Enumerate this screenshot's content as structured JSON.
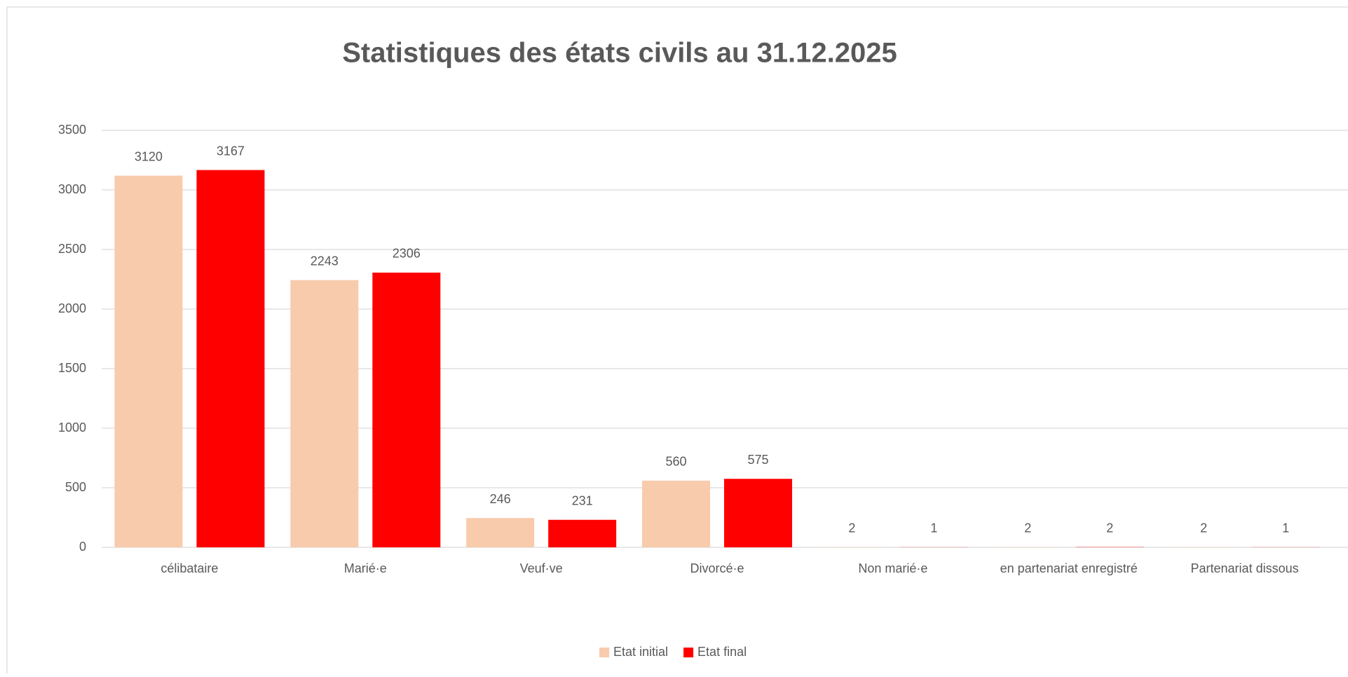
{
  "chart_data": {
    "type": "bar",
    "title": "Statistiques des états civils au 31.12.2025",
    "categories": [
      "célibataire",
      "Marié·e",
      "Veuf·ve",
      "Divorcé·e",
      "Non marié·e",
      "en partenariat enregistré",
      "Partenariat dissous"
    ],
    "series": [
      {
        "name": "Etat initial",
        "color": "#f8cbad",
        "values": [
          3120,
          2243,
          246,
          560,
          2,
          2,
          2
        ]
      },
      {
        "name": "Etat final",
        "color": "#ff0000",
        "values": [
          3167,
          2306,
          231,
          575,
          1,
          2,
          1
        ]
      }
    ],
    "ylim": [
      0,
      3500
    ],
    "yticks": [
      0,
      500,
      1000,
      1500,
      2000,
      2500,
      3000,
      3500
    ],
    "grid": true,
    "legend": "bottom"
  }
}
